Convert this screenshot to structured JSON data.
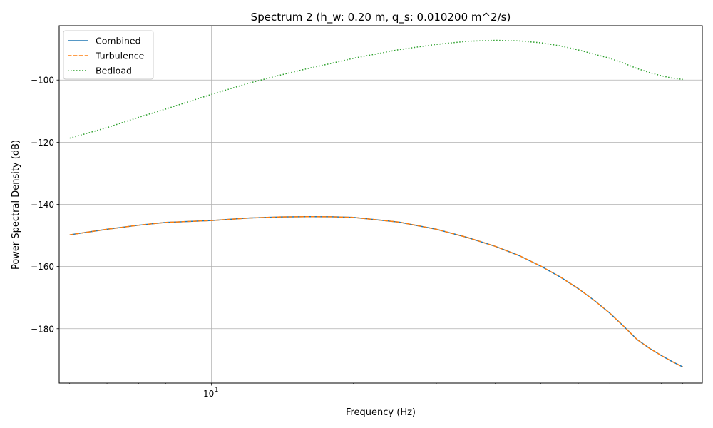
{
  "chart_data": {
    "type": "line",
    "title": "Spectrum 2 (h_w: 0.20 m, q_s: 0.010200 m^2/s)",
    "xlabel": "Frequency (Hz)",
    "ylabel": "Power Spectral Density (dB)",
    "xscale": "log",
    "xlim": [
      4.75,
      110
    ],
    "ylim": [
      -197.5,
      -82.5
    ],
    "x_ticks": [
      {
        "value": 10,
        "label": "10"
      }
    ],
    "x_tick_label_exponent": "1",
    "x_minor_ticks": [
      5,
      6,
      7,
      8,
      9,
      20,
      30,
      40,
      50,
      60,
      70,
      80,
      90,
      100
    ],
    "y_ticks": [
      {
        "value": -100,
        "label": "−100"
      },
      {
        "value": -120,
        "label": "−120"
      },
      {
        "value": -140,
        "label": "−140"
      },
      {
        "value": -160,
        "label": "−160"
      },
      {
        "value": -180,
        "label": "−180"
      }
    ],
    "grid": true,
    "legend_position": "top-left",
    "series": [
      {
        "name": "Combined",
        "color": "#1f77b4",
        "linestyle": "solid",
        "x": [
          5,
          6,
          7,
          8,
          10,
          12,
          14,
          16,
          18,
          20,
          25,
          30,
          35,
          40,
          45,
          50,
          55,
          60,
          65,
          70,
          75,
          80,
          85,
          90,
          95,
          100
        ],
        "y": [
          -149.8,
          -148.0,
          -146.7,
          -145.8,
          -145.2,
          -144.4,
          -144.05,
          -143.95,
          -144.0,
          -144.2,
          -145.7,
          -148.0,
          -150.7,
          -153.5,
          -156.5,
          -159.9,
          -163.4,
          -167.1,
          -171.0,
          -175.0,
          -179.3,
          -183.5,
          -186.3,
          -188.6,
          -190.6,
          -192.3
        ]
      },
      {
        "name": "Turbulence",
        "color": "#ff7f0e",
        "linestyle": "dashed",
        "x": [
          5,
          6,
          7,
          8,
          10,
          12,
          14,
          16,
          18,
          20,
          25,
          30,
          35,
          40,
          45,
          50,
          55,
          60,
          65,
          70,
          75,
          80,
          85,
          90,
          95,
          100
        ],
        "y": [
          -149.8,
          -148.0,
          -146.7,
          -145.8,
          -145.2,
          -144.4,
          -144.05,
          -143.95,
          -144.0,
          -144.2,
          -145.7,
          -148.0,
          -150.7,
          -153.5,
          -156.5,
          -159.9,
          -163.4,
          -167.1,
          -171.0,
          -175.0,
          -179.3,
          -183.5,
          -186.3,
          -188.6,
          -190.6,
          -192.3
        ]
      },
      {
        "name": "Bedload",
        "color": "#2ca02c",
        "linestyle": "dotted",
        "x": [
          5,
          6,
          7,
          8,
          10,
          12,
          14,
          16,
          18,
          20,
          25,
          30,
          35,
          40,
          45,
          50,
          55,
          60,
          65,
          70,
          75,
          80,
          85,
          90,
          95,
          100
        ],
        "y": [
          -118.7,
          -115.3,
          -112.0,
          -109.3,
          -104.6,
          -101.0,
          -98.4,
          -96.3,
          -94.6,
          -93.0,
          -90.2,
          -88.5,
          -87.5,
          -87.2,
          -87.4,
          -88.0,
          -89.0,
          -90.3,
          -91.7,
          -93.0,
          -94.6,
          -96.3,
          -97.6,
          -98.6,
          -99.4,
          -99.8
        ]
      }
    ]
  }
}
